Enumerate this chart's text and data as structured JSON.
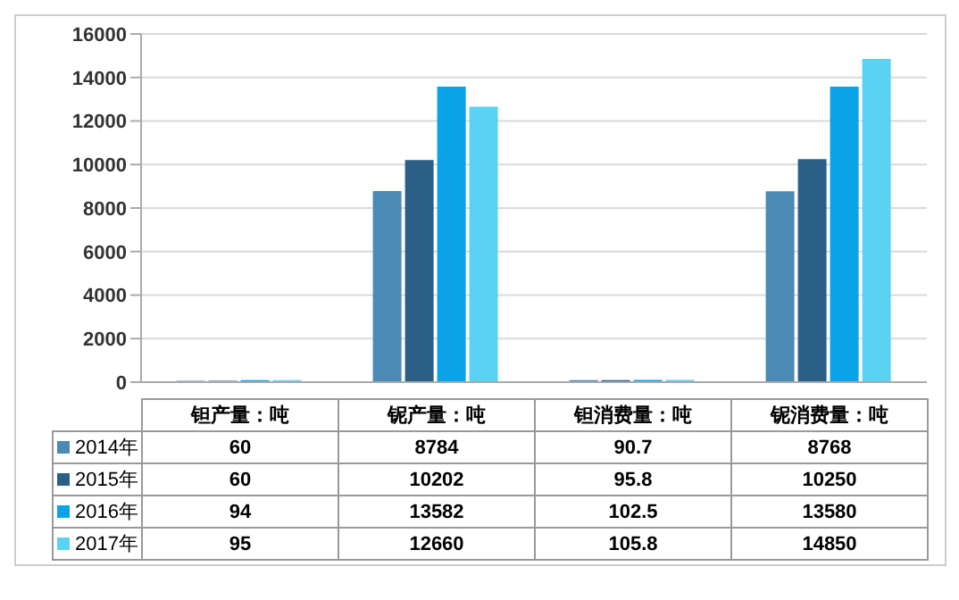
{
  "chart_data": {
    "type": "bar",
    "categories": [
      "钽产量：吨",
      "铌产量：吨",
      "钽消费量：吨",
      "铌消费量：吨"
    ],
    "series": [
      {
        "name": "2014年",
        "color": "#4a8ab5",
        "values": [
          60,
          8784,
          90.7,
          8768
        ]
      },
      {
        "name": "2015年",
        "color": "#2b5f86",
        "values": [
          60,
          10202,
          95.8,
          10250
        ]
      },
      {
        "name": "2016年",
        "color": "#0aa3e8",
        "values": [
          94,
          13582,
          102.5,
          13580
        ]
      },
      {
        "name": "2017年",
        "color": "#5ad2f4",
        "values": [
          95,
          12660,
          105.8,
          14850
        ]
      }
    ],
    "ylim": [
      0,
      16000
    ],
    "yticks": [
      0,
      2000,
      4000,
      6000,
      8000,
      10000,
      12000,
      14000,
      16000
    ],
    "grid": "y",
    "legend": "bottom",
    "data_labels": true
  }
}
